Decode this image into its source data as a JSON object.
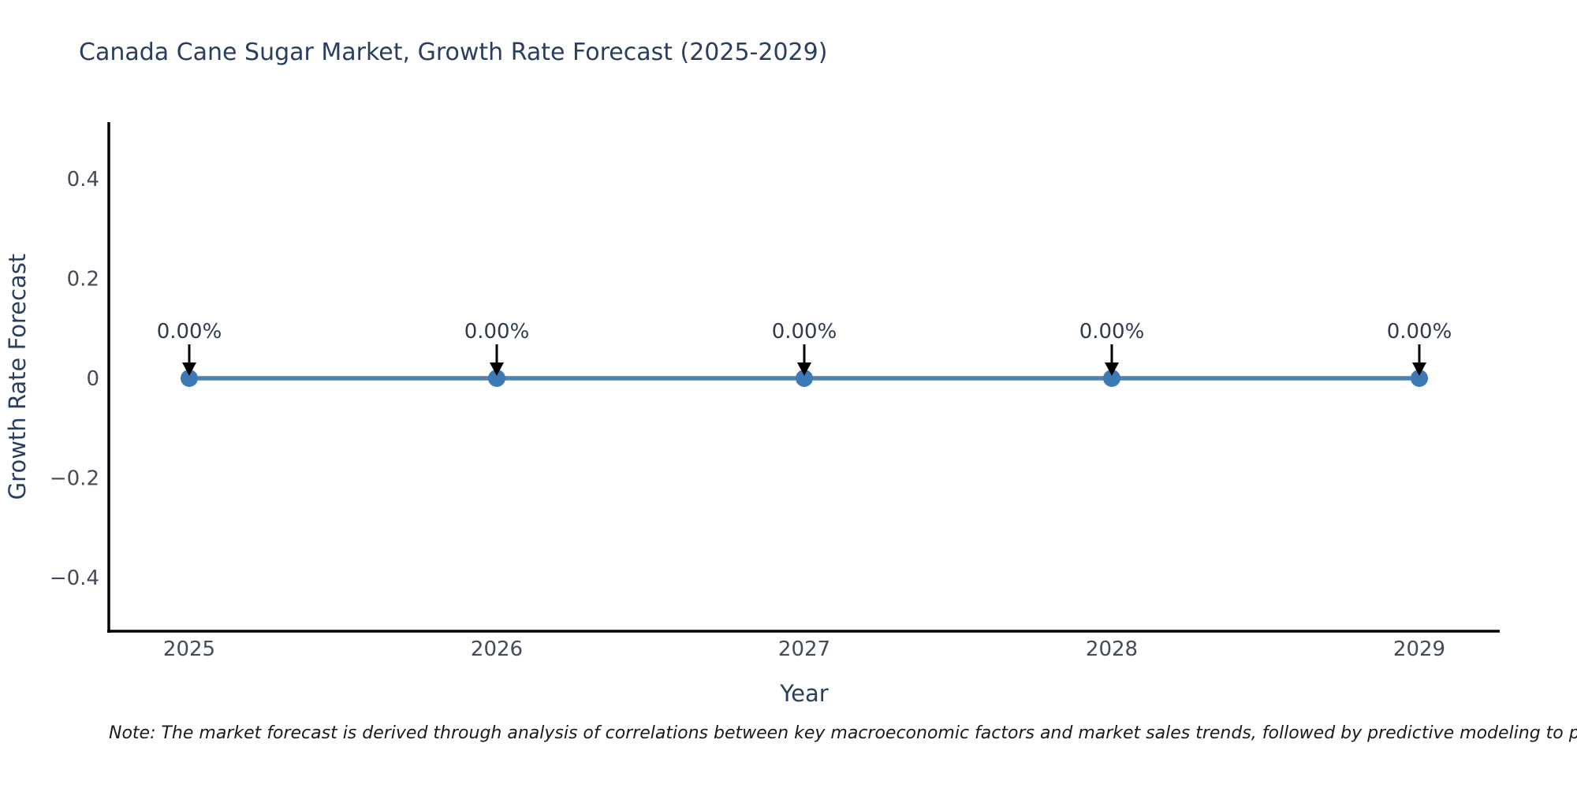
{
  "page": {
    "background": "#ffffff"
  },
  "chart_data": {
    "type": "line",
    "title": "Canada Cane Sugar Market, Growth Rate Forecast (2025-2029)",
    "xlabel": "Year",
    "ylabel": "Growth Rate Forecast",
    "x": [
      2025,
      2026,
      2027,
      2028,
      2029
    ],
    "x_tick_labels": [
      "2025",
      "2026",
      "2027",
      "2028",
      "2029"
    ],
    "series": [
      {
        "name": "Growth Rate Forecast",
        "values": [
          0,
          0,
          0,
          0,
          0
        ]
      }
    ],
    "data_labels": [
      "0.00%",
      "0.00%",
      "0.00%",
      "0.00%",
      "0.00%"
    ],
    "y_ticks": [
      {
        "value": 0.4,
        "label": "0.4"
      },
      {
        "value": 0.2,
        "label": "0.2"
      },
      {
        "value": 0,
        "label": "0"
      },
      {
        "value": -0.2,
        "label": "−0.2"
      },
      {
        "value": -0.4,
        "label": "−0.4"
      }
    ],
    "ylim": [
      -0.51,
      0.51
    ],
    "grid": false,
    "legend": "none",
    "colors": {
      "line": "#4e80ad",
      "marker": "#3c79b5",
      "arrow": "#000000",
      "axis": "#000000",
      "title_text": "#2a3f5f",
      "tick_text": "#434b57",
      "annotation_text": "#2f3b4d"
    }
  },
  "note": {
    "text": "Note: The market forecast is derived through analysis of correlations between key macroeconomic factors and market sales trends, followed by predictive modeling to project future sales"
  }
}
